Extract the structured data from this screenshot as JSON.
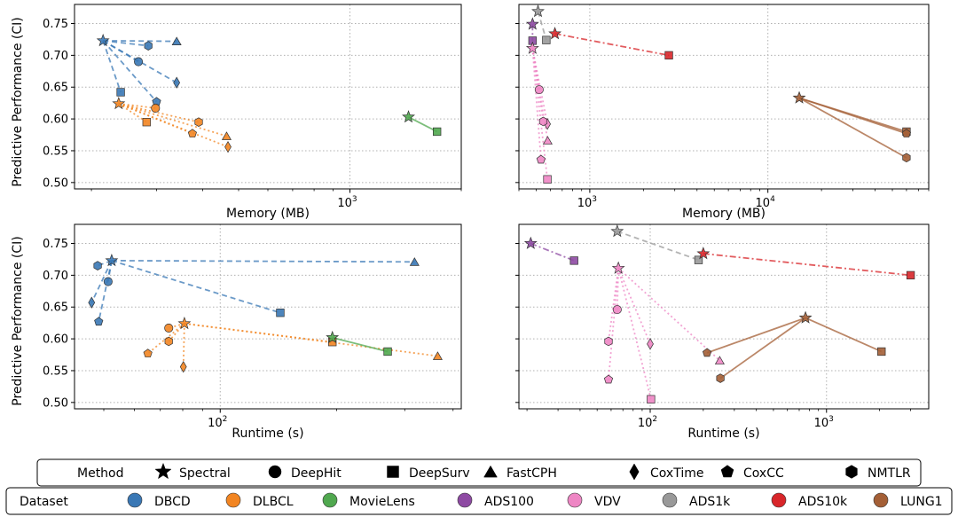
{
  "y_axis_label": "Predictive Performance (CI)",
  "legends": {
    "method": {
      "title": "Method",
      "entries": [
        {
          "label": "Spectral",
          "marker": "star"
        },
        {
          "label": "DeepHit",
          "marker": "circle"
        },
        {
          "label": "DeepSurv",
          "marker": "square"
        },
        {
          "label": "FastCPH",
          "marker": "triangle"
        },
        {
          "label": "CoxTime",
          "marker": "diamond"
        },
        {
          "label": "CoxCC",
          "marker": "pentagon"
        },
        {
          "label": "NMTLR",
          "marker": "hexagon"
        }
      ]
    },
    "dataset": {
      "title": "Dataset",
      "entries": [
        {
          "label": "DBCD",
          "color": "#3a78b5"
        },
        {
          "label": "DLBCL",
          "color": "#f28522"
        },
        {
          "label": "MovieLens",
          "color": "#50a84f"
        },
        {
          "label": "ADS100",
          "color": "#8e4aa3"
        },
        {
          "label": "VDV",
          "color": "#ee86c4"
        },
        {
          "label": "ADS1k",
          "color": "#999999"
        },
        {
          "label": "ADS10k",
          "color": "#d8262a"
        },
        {
          "label": "LUNG1",
          "color": "#a45f36"
        }
      ]
    }
  },
  "chart_data": [
    {
      "type": "scatter",
      "panel": "top-left",
      "xlabel": "Memory (MB)",
      "ylabel": "Predictive Performance (CI)",
      "xscale": "log",
      "xlim": [
        180,
        2000
      ],
      "ylim": [
        0.49,
        0.78
      ],
      "xticks": [
        {
          "value": 1000,
          "label": "10^3"
        }
      ],
      "yticks": [
        0.5,
        0.55,
        0.6,
        0.65,
        0.7,
        0.75
      ],
      "show_ylabel": true,
      "groups": [
        {
          "dataset": "DBCD",
          "line": "dashed",
          "spectral": [
            215,
            0.723
          ],
          "others": [
            {
              "method": "DeepHit",
              "x": 268,
              "y": 0.69
            },
            {
              "method": "DeepSurv",
              "x": 240,
              "y": 0.642
            },
            {
              "method": "FastCPH",
              "x": 340,
              "y": 0.722
            },
            {
              "method": "CoxTime",
              "x": 340,
              "y": 0.657
            },
            {
              "method": "CoxCC",
              "x": 300,
              "y": 0.627
            },
            {
              "method": "NMTLR",
              "x": 285,
              "y": 0.715
            }
          ]
        },
        {
          "dataset": "DLBCL",
          "line": "dotted",
          "spectral": [
            237,
            0.624
          ],
          "others": [
            {
              "method": "DeepHit",
              "x": 298,
              "y": 0.617
            },
            {
              "method": "DeepSurv",
              "x": 282,
              "y": 0.595
            },
            {
              "method": "FastCPH",
              "x": 464,
              "y": 0.573
            },
            {
              "method": "CoxTime",
              "x": 468,
              "y": 0.556
            },
            {
              "method": "CoxCC",
              "x": 375,
              "y": 0.577
            },
            {
              "method": "NMTLR",
              "x": 390,
              "y": 0.595
            }
          ]
        },
        {
          "dataset": "MovieLens",
          "line": "solid",
          "spectral": [
            1440,
            0.603
          ],
          "others": [
            {
              "method": "DeepSurv",
              "x": 1720,
              "y": 0.58
            }
          ]
        }
      ]
    },
    {
      "type": "scatter",
      "panel": "top-right",
      "xlabel": "Memory (MB)",
      "xscale": "log",
      "xlim": [
        400,
        80000
      ],
      "ylim": [
        0.49,
        0.78
      ],
      "xticks": [
        {
          "value": 1000,
          "label": "10^3"
        },
        {
          "value": 10000,
          "label": "10^4"
        }
      ],
      "yticks": [
        0.5,
        0.55,
        0.6,
        0.65,
        0.7,
        0.75
      ],
      "show_ylabel": false,
      "groups": [
        {
          "dataset": "ADS100",
          "line": "dashdot",
          "spectral": [
            477,
            0.749
          ],
          "others": [
            {
              "method": "DeepSurv",
              "x": 477,
              "y": 0.723
            }
          ]
        },
        {
          "dataset": "VDV",
          "line": "dotted",
          "spectral": [
            477,
            0.711
          ],
          "others": [
            {
              "method": "DeepHit",
              "x": 520,
              "y": 0.646
            },
            {
              "method": "DeepSurv",
              "x": 578,
              "y": 0.505
            },
            {
              "method": "FastCPH",
              "x": 580,
              "y": 0.566
            },
            {
              "method": "CoxTime",
              "x": 578,
              "y": 0.592
            },
            {
              "method": "CoxCC",
              "x": 532,
              "y": 0.536
            },
            {
              "method": "NMTLR",
              "x": 548,
              "y": 0.596
            }
          ]
        },
        {
          "dataset": "ADS1k",
          "line": "dashed",
          "spectral": [
            512,
            0.769
          ],
          "others": [
            {
              "method": "DeepSurv",
              "x": 570,
              "y": 0.724
            }
          ]
        },
        {
          "dataset": "ADS10k",
          "line": "dashdot",
          "spectral": [
            637,
            0.734
          ],
          "others": [
            {
              "method": "DeepSurv",
              "x": 2780,
              "y": 0.7
            }
          ]
        },
        {
          "dataset": "LUNG1",
          "line": "solid",
          "spectral": [
            15000,
            0.633
          ],
          "others": [
            {
              "method": "DeepSurv",
              "x": 60000,
              "y": 0.58
            },
            {
              "method": "NMTLR",
              "x": 60000,
              "y": 0.539
            },
            {
              "method": "CoxCC",
              "x": 60000,
              "y": 0.577
            }
          ]
        }
      ]
    },
    {
      "type": "scatter",
      "panel": "bottom-left",
      "xlabel": "Runtime (s)",
      "ylabel": "Predictive Performance (CI)",
      "xscale": "log",
      "xlim": [
        42,
        420
      ],
      "ylim": [
        0.49,
        0.78
      ],
      "xticks": [
        {
          "value": 100,
          "label": "10^2"
        }
      ],
      "yticks": [
        0.5,
        0.55,
        0.6,
        0.65,
        0.7,
        0.75
      ],
      "show_ylabel": true,
      "groups": [
        {
          "dataset": "DBCD",
          "line": "dashed",
          "spectral": [
            52.4,
            0.723
          ],
          "others": [
            {
              "method": "DeepHit",
              "x": 51.3,
              "y": 0.69
            },
            {
              "method": "DeepSurv",
              "x": 143,
              "y": 0.641
            },
            {
              "method": "FastCPH",
              "x": 318,
              "y": 0.721
            },
            {
              "method": "CoxTime",
              "x": 46.5,
              "y": 0.657
            },
            {
              "method": "CoxCC",
              "x": 48.5,
              "y": 0.627
            },
            {
              "method": "NMTLR",
              "x": 48.2,
              "y": 0.715
            }
          ]
        },
        {
          "dataset": "DLBCL",
          "line": "dotted",
          "spectral": [
            80.8,
            0.624
          ],
          "others": [
            {
              "method": "DeepHit",
              "x": 73.6,
              "y": 0.617
            },
            {
              "method": "DeepSurv",
              "x": 195,
              "y": 0.595
            },
            {
              "method": "FastCPH",
              "x": 365,
              "y": 0.573
            },
            {
              "method": "CoxTime",
              "x": 80.3,
              "y": 0.556
            },
            {
              "method": "CoxCC",
              "x": 65,
              "y": 0.577
            },
            {
              "method": "NMTLR",
              "x": 73.6,
              "y": 0.596
            }
          ]
        },
        {
          "dataset": "MovieLens",
          "line": "solid",
          "spectral": [
            195,
            0.602
          ],
          "others": [
            {
              "method": "DeepSurv",
              "x": 271,
              "y": 0.58
            }
          ]
        }
      ]
    },
    {
      "type": "scatter",
      "panel": "bottom-right",
      "xlabel": "Runtime (s)",
      "xscale": "log",
      "xlim": [
        18,
        3800
      ],
      "ylim": [
        0.49,
        0.78
      ],
      "xticks": [
        {
          "value": 100,
          "label": "10^2"
        },
        {
          "value": 1000,
          "label": "10^3"
        }
      ],
      "yticks": [
        0.5,
        0.55,
        0.6,
        0.65,
        0.7,
        0.75
      ],
      "show_ylabel": false,
      "groups": [
        {
          "dataset": "ADS100",
          "line": "dashdot",
          "spectral": [
            21,
            0.75
          ],
          "others": [
            {
              "method": "DeepSurv",
              "x": 37,
              "y": 0.723
            }
          ]
        },
        {
          "dataset": "VDV",
          "line": "dotted",
          "spectral": [
            66,
            0.711
          ],
          "others": [
            {
              "method": "DeepHit",
              "x": 65,
              "y": 0.646
            },
            {
              "method": "DeepSurv",
              "x": 101,
              "y": 0.505
            },
            {
              "method": "FastCPH",
              "x": 248,
              "y": 0.566
            },
            {
              "method": "CoxTime",
              "x": 100,
              "y": 0.592
            },
            {
              "method": "CoxCC",
              "x": 58,
              "y": 0.536
            },
            {
              "method": "NMTLR",
              "x": 58,
              "y": 0.596
            }
          ]
        },
        {
          "dataset": "ADS1k",
          "line": "dashed",
          "spectral": [
            65,
            0.769
          ],
          "others": [
            {
              "method": "DeepSurv",
              "x": 188,
              "y": 0.724
            }
          ]
        },
        {
          "dataset": "ADS10k",
          "line": "dashdot",
          "spectral": [
            200,
            0.734
          ],
          "others": [
            {
              "method": "DeepSurv",
              "x": 3000,
              "y": 0.7
            }
          ]
        },
        {
          "dataset": "LUNG1",
          "line": "solid",
          "spectral": [
            760,
            0.633
          ],
          "others": [
            {
              "method": "DeepSurv",
              "x": 2050,
              "y": 0.58
            },
            {
              "method": "CoxCC",
              "x": 210,
              "y": 0.578
            },
            {
              "method": "NMTLR",
              "x": 250,
              "y": 0.538
            }
          ]
        }
      ]
    }
  ]
}
